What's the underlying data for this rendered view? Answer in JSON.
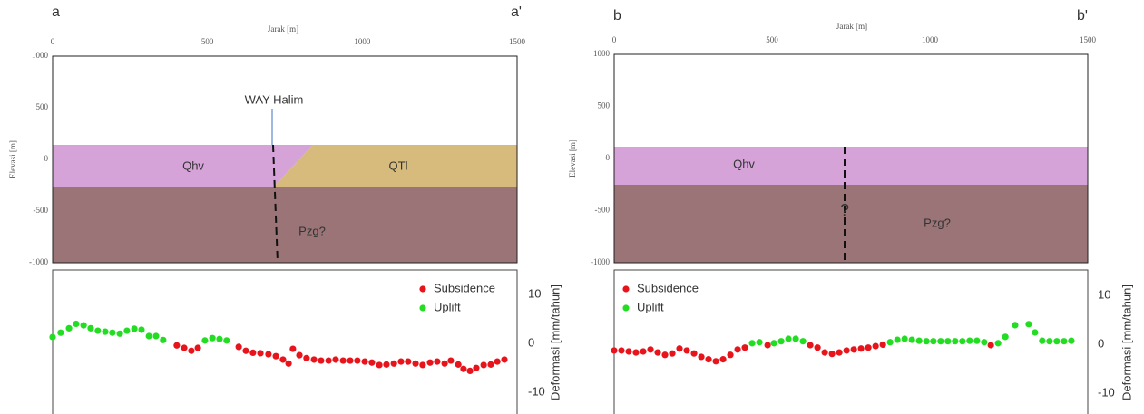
{
  "chart_data": [
    {
      "type": "section",
      "panel_labels": [
        "a",
        "a'"
      ],
      "x_label": "Jarak [m]",
      "y_label": "Elevasi [m]",
      "xlim": [
        0,
        1500
      ],
      "xticks": [
        0,
        500,
        1000,
        1500
      ],
      "ylim": [
        -1000,
        1000
      ],
      "yticks": [
        -1000,
        -500,
        0,
        500,
        1000
      ],
      "units": [
        "Qhv",
        "QTl",
        "Pzg?"
      ],
      "annotations": [
        "WAY Halim"
      ]
    },
    {
      "type": "scatter",
      "y_label": "Deformasi [mm/tahun]",
      "xlim": [
        0,
        1500
      ],
      "ylim": [
        -14.4,
        15
      ],
      "yticks": [
        -10,
        0,
        10
      ],
      "legend": "top-right",
      "series": [
        {
          "name": "Subsidence",
          "color": "#e8141c",
          "x": [
            401,
            425,
            448,
            469,
            601,
            624,
            647,
            671,
            697,
            721,
            744,
            762,
            776,
            797,
            820,
            844,
            867,
            891,
            914,
            938,
            961,
            984,
            1008,
            1031,
            1055,
            1078,
            1102,
            1125,
            1148,
            1172,
            1195,
            1219,
            1242,
            1266,
            1286,
            1310,
            1327,
            1348,
            1368,
            1392,
            1415,
            1436,
            1459
          ],
          "values": [
            -0.4,
            -0.9,
            -1.5,
            -0.9,
            -0.7,
            -1.5,
            -1.9,
            -2.0,
            -2.2,
            -2.6,
            -3.3,
            -4.1,
            -1.1,
            -2.4,
            -3.0,
            -3.3,
            -3.5,
            -3.5,
            -3.3,
            -3.5,
            -3.5,
            -3.5,
            -3.7,
            -3.9,
            -4.4,
            -4.3,
            -4.1,
            -3.7,
            -3.7,
            -4.1,
            -4.4,
            -3.9,
            -3.7,
            -4.1,
            -3.5,
            -4.3,
            -5.2,
            -5.6,
            -5.0,
            -4.4,
            -4.3,
            -3.7,
            -3.3
          ]
        },
        {
          "name": "Uplift",
          "color": "#22dd22",
          "x": [
            0,
            26,
            53,
            76,
            100,
            123,
            146,
            170,
            193,
            217,
            240,
            264,
            287,
            311,
            334,
            357,
            492,
            516,
            539,
            562
          ],
          "values": [
            1.3,
            2.2,
            3.1,
            4.0,
            3.7,
            3.1,
            2.6,
            2.4,
            2.2,
            2.0,
            2.6,
            3.0,
            2.8,
            1.5,
            1.5,
            0.7,
            0.6,
            1.1,
            0.9,
            0.6
          ]
        }
      ]
    },
    {
      "type": "section",
      "panel_labels": [
        "b",
        "b'"
      ],
      "x_label": "Jarak [m]",
      "y_label": "Elevasi [m]",
      "xlim": [
        0,
        1500
      ],
      "xticks": [
        0,
        500,
        1000,
        1500
      ],
      "ylim": [
        -1000,
        1000
      ],
      "yticks": [
        -1000,
        -500,
        0,
        500,
        1000
      ],
      "units": [
        "Qhv",
        "Pzg?"
      ],
      "annotations": [
        "?"
      ]
    },
    {
      "type": "scatter",
      "y_label": "Deformasi [mm/tahun]",
      "xlim": [
        0,
        1500
      ],
      "ylim": [
        -14.3,
        15.2
      ],
      "yticks": [
        -10,
        0,
        10
      ],
      "legend": "top-left",
      "series": [
        {
          "name": "Subsidence",
          "color": "#e8141c",
          "x": [
            0,
            23,
            46,
            69,
            92,
            115,
            138,
            161,
            184,
            207,
            230,
            253,
            276,
            299,
            322,
            345,
            368,
            391,
            414,
            486,
            621,
            644,
            667,
            690,
            713,
            736,
            759,
            782,
            805,
            828,
            851,
            1193
          ],
          "values": [
            -1.3,
            -1.3,
            -1.5,
            -1.7,
            -1.5,
            -1.1,
            -1.7,
            -2.2,
            -1.9,
            -0.9,
            -1.3,
            -1.9,
            -2.6,
            -3.1,
            -3.5,
            -3.1,
            -2.2,
            -1.1,
            -0.7,
            -0.2,
            -0.2,
            -0.7,
            -1.7,
            -2.0,
            -1.7,
            -1.3,
            -1.1,
            -0.9,
            -0.7,
            -0.4,
            -0.1,
            -0.2
          ]
        },
        {
          "name": "Uplift",
          "color": "#22dd22",
          "x": [
            437,
            460,
            506,
            529,
            552,
            575,
            598,
            874,
            897,
            920,
            943,
            966,
            989,
            1011,
            1034,
            1057,
            1080,
            1103,
            1126,
            1149,
            1172,
            1216,
            1239,
            1270,
            1313,
            1333,
            1356,
            1379,
            1402,
            1425,
            1448
          ],
          "values": [
            0.2,
            0.4,
            0.2,
            0.6,
            1.1,
            1.1,
            0.6,
            0.4,
            0.9,
            1.1,
            0.9,
            0.7,
            0.6,
            0.6,
            0.6,
            0.6,
            0.6,
            0.6,
            0.7,
            0.7,
            0.4,
            0.2,
            1.5,
            3.9,
            4.1,
            2.4,
            0.7,
            0.6,
            0.6,
            0.6,
            0.7
          ]
        }
      ]
    }
  ]
}
